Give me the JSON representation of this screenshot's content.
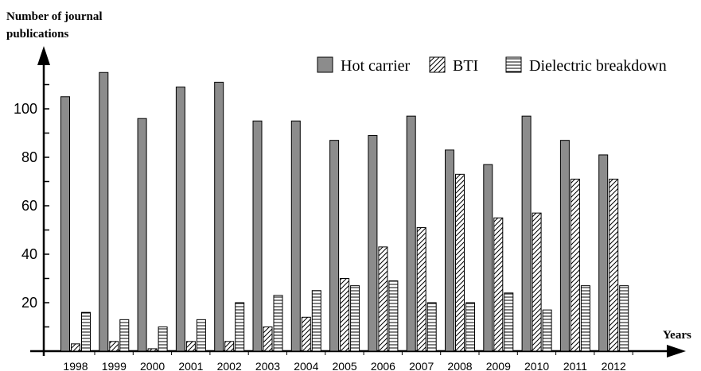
{
  "chart_data": {
    "type": "bar",
    "ylabel_lines": [
      "Number of journal",
      "publications"
    ],
    "xlabel": "Years",
    "ylim": [
      0,
      120
    ],
    "yticks": [
      20,
      40,
      60,
      80,
      100
    ],
    "categories": [
      "1998",
      "1999",
      "2000",
      "2001",
      "2002",
      "2003",
      "2004",
      "2005",
      "2006",
      "2007",
      "2008",
      "2009",
      "2010",
      "2011",
      "2012"
    ],
    "series": [
      {
        "name": "Hot carrier",
        "pattern": "solid-gray",
        "color": "#8c8c8c",
        "values": [
          105,
          115,
          96,
          109,
          111,
          95,
          95,
          87,
          89,
          97,
          83,
          77,
          97,
          87,
          81
        ]
      },
      {
        "name": "BTI",
        "pattern": "diagonal-hatch",
        "color": "#000000",
        "values": [
          3,
          4,
          1,
          4,
          4,
          10,
          14,
          30,
          43,
          51,
          73,
          55,
          57,
          71,
          71
        ]
      },
      {
        "name": "Dielectric breakdown",
        "pattern": "horizontal-lines",
        "color": "#000000",
        "values": [
          16,
          13,
          10,
          13,
          20,
          23,
          25,
          27,
          29,
          20,
          20,
          24,
          17,
          27,
          27
        ]
      }
    ],
    "legend_position": "top-right",
    "grid": false
  }
}
